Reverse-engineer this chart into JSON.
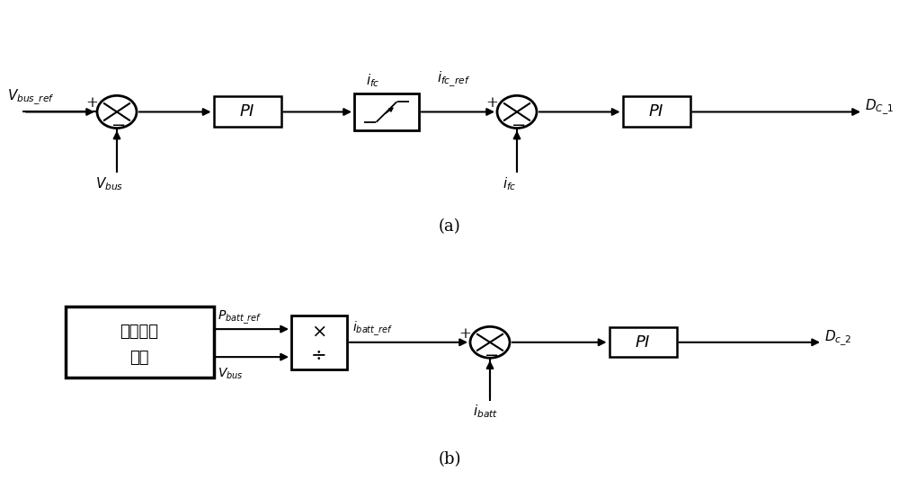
{
  "bg_color": "#ffffff",
  "line_color": "#000000",
  "fig_width": 10.0,
  "fig_height": 5.44,
  "dpi": 100,
  "label_a": "(a)",
  "label_b": "(b)"
}
